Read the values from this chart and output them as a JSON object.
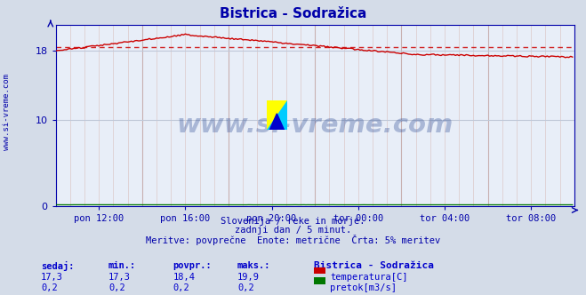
{
  "title": "Bistrica - Sodražica",
  "bg_color": "#d4dce8",
  "plot_bg_color": "#e8eef8",
  "title_color": "#0000aa",
  "subtitle_lines": [
    "Slovenija / reke in morje.",
    "zadnji dan / 5 minut.",
    "Meritve: povprečne  Enote: metrične  Črta: 5% meritev"
  ],
  "xlabel_ticks": [
    "pon 12:00",
    "pon 16:00",
    "pon 20:00",
    "tor 00:00",
    "tor 04:00",
    "tor 08:00"
  ],
  "xlabel_tick_pos": [
    24,
    72,
    120,
    168,
    216,
    264
  ],
  "yticks": [
    0,
    10,
    18
  ],
  "ylim": [
    0,
    21.0
  ],
  "xlim": [
    0,
    288
  ],
  "temp_color": "#cc0000",
  "flow_color": "#007700",
  "avg_line_color": "#cc0000",
  "avg_line_value": 18.4,
  "watermark_text": "www.si-vreme.com",
  "watermark_color": "#1a3a8a",
  "watermark_alpha": 0.3,
  "stats_labels": [
    "sedaj:",
    "min.:",
    "povpr.:",
    "maks.:"
  ],
  "stats_values_temp": [
    "17,3",
    "17,3",
    "18,4",
    "19,9"
  ],
  "stats_values_flow": [
    "0,2",
    "0,2",
    "0,2",
    "0,2"
  ],
  "legend_station": "Bistrica - Sodražica",
  "legend_temp_label": "temperatura[C]",
  "legend_flow_label": "pretok[m3/s]",
  "stats_color": "#0000cc",
  "tick_color": "#0000aa",
  "axis_color": "#0000aa",
  "minor_grid_color": "#dcc8c8",
  "major_grid_color": "#c8b0b0",
  "hgrid_color": "#c0c8d8",
  "left_label": "www.si-vreme.com",
  "left_label_color": "#0000aa"
}
